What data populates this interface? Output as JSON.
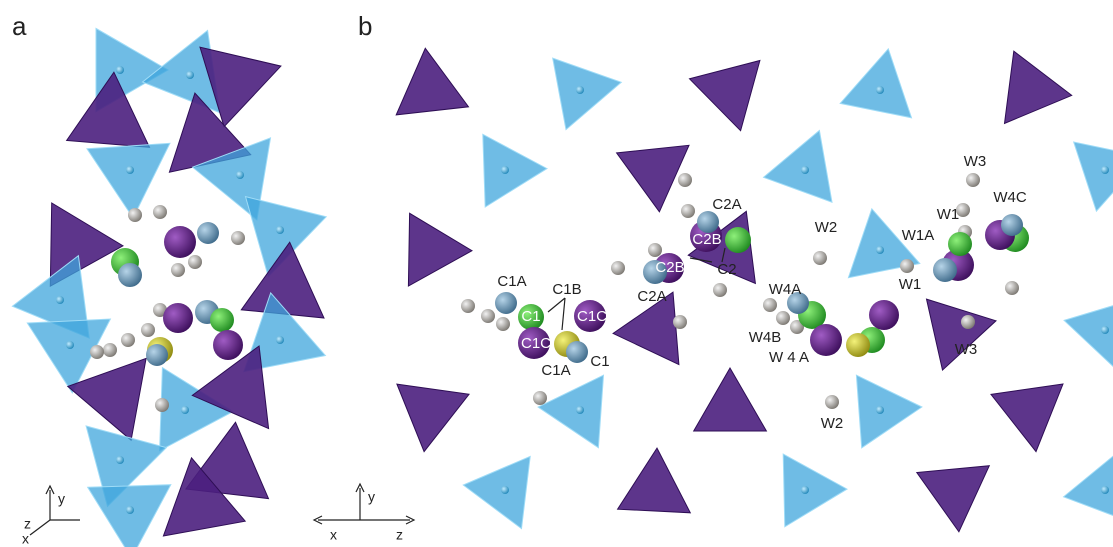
{
  "panels": [
    {
      "label": "a",
      "axes": [
        "y",
        "z",
        "x"
      ]
    },
    {
      "label": "b",
      "axes": [
        "y",
        "x",
        "z"
      ],
      "atom_labels": [
        "C2A",
        "C2B",
        "C2B",
        "C2",
        "C2A",
        "C1A",
        "C1B",
        "C1",
        "C1C",
        "C1C",
        "C1",
        "C1A",
        "W2",
        "W4A",
        "W4B",
        "W 4 A",
        "W3",
        "W4C",
        "W1",
        "W1A",
        "W1",
        "W3",
        "W2"
      ]
    }
  ]
}
